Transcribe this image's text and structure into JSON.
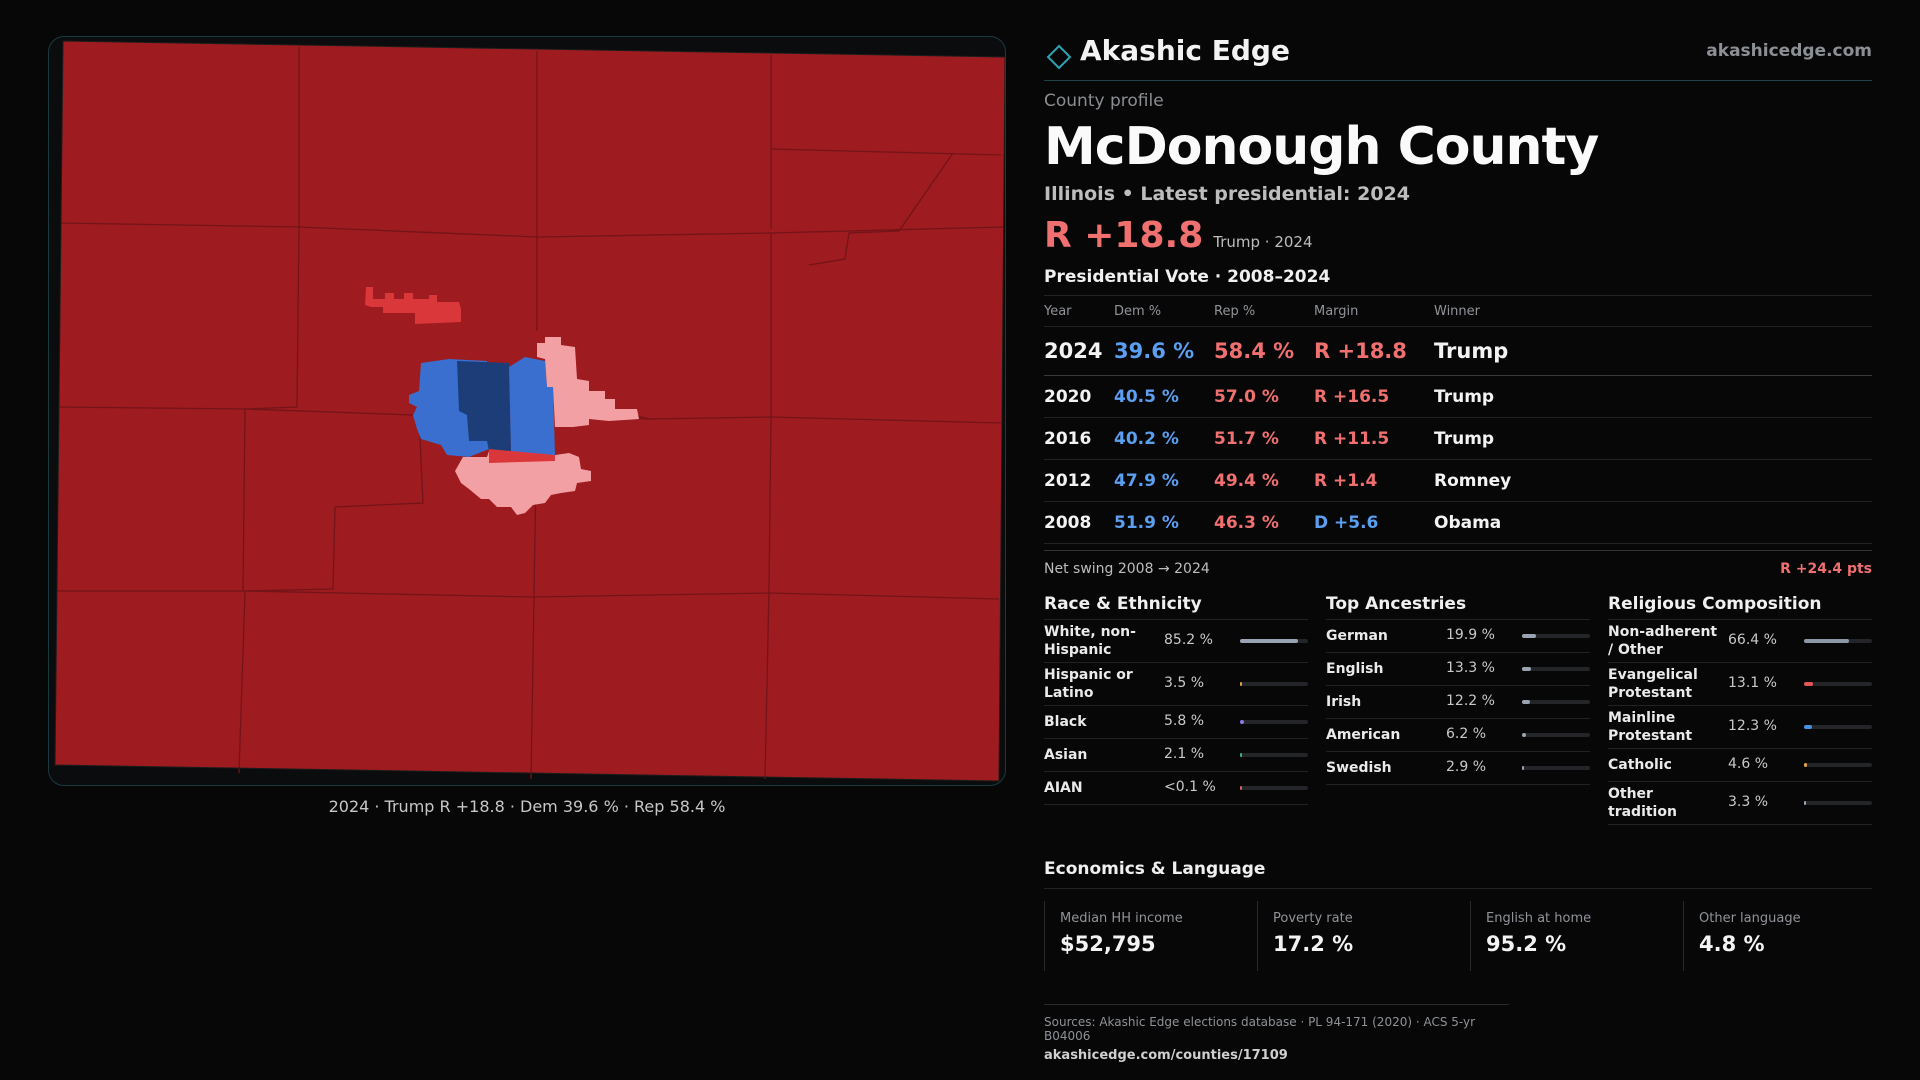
{
  "brand": {
    "name": "Akashic Edge",
    "url": "akashicedge.com",
    "accent_color": "#2aa3b3",
    "logo_icon": "diamond-outline-icon"
  },
  "profile": {
    "label": "County profile",
    "county": "McDonough County",
    "subtitle": "Illinois • Latest presidential: 2024",
    "headline_margin": "R +18.8",
    "headline_winner": "Trump · 2024"
  },
  "map": {
    "caption": "2024 · Trump R +18.8 · Dem 39.6 % · Rep 58.4 %",
    "colors": {
      "strong_rep": "#9e1b1f",
      "mid_rep": "#d9373a",
      "light_rep": "#f3a0a4",
      "dem": "#3a6fcf",
      "dark_dem": "#1c3d77",
      "border": "#7a1518"
    }
  },
  "vote": {
    "title": "Presidential Vote · 2008–2024",
    "headers": [
      "Year",
      "Dem %",
      "Rep %",
      "Margin",
      "Winner"
    ],
    "rows": [
      {
        "year": "2024",
        "dem": "39.6 %",
        "rep": "58.4 %",
        "margin": "R +18.8",
        "party": "rep",
        "winner": "Trump"
      },
      {
        "year": "2020",
        "dem": "40.5 %",
        "rep": "57.0 %",
        "margin": "R +16.5",
        "party": "rep",
        "winner": "Trump"
      },
      {
        "year": "2016",
        "dem": "40.2 %",
        "rep": "51.7 %",
        "margin": "R +11.5",
        "party": "rep",
        "winner": "Trump"
      },
      {
        "year": "2012",
        "dem": "47.9 %",
        "rep": "49.4 %",
        "margin": "R +1.4",
        "party": "rep",
        "winner": "Romney"
      },
      {
        "year": "2008",
        "dem": "51.9 %",
        "rep": "46.3 %",
        "margin": "D +5.6",
        "party": "dem",
        "winner": "Obama"
      }
    ],
    "swing_label": "Net swing 2008 → 2024",
    "swing_value": "R +24.4 pts"
  },
  "race": {
    "title": "Race & Ethnicity",
    "rows": [
      {
        "label": "White, non-Hispanic",
        "value": "85.2 %",
        "fraction": 0.852,
        "color": "#9aa3b2"
      },
      {
        "label": "Hispanic or Latino",
        "value": "3.5 %",
        "fraction": 0.035,
        "color": "#e0a23a"
      },
      {
        "label": "Black",
        "value": "5.8 %",
        "fraction": 0.058,
        "color": "#8b7be0"
      },
      {
        "label": "Asian",
        "value": "2.1 %",
        "fraction": 0.021,
        "color": "#3ab37e"
      },
      {
        "label": "AIAN",
        "value": "<0.1 %",
        "fraction": 0.001,
        "color": "#c66"
      }
    ]
  },
  "ancestry": {
    "title": "Top Ancestries",
    "rows": [
      {
        "label": "German",
        "value": "19.9 %",
        "fraction": 0.199,
        "color": "#9aa3b2"
      },
      {
        "label": "English",
        "value": "13.3 %",
        "fraction": 0.133,
        "color": "#9aa3b2"
      },
      {
        "label": "Irish",
        "value": "12.2 %",
        "fraction": 0.122,
        "color": "#9aa3b2"
      },
      {
        "label": "American",
        "value": "6.2 %",
        "fraction": 0.062,
        "color": "#9aa3b2"
      },
      {
        "label": "Swedish",
        "value": "2.9 %",
        "fraction": 0.029,
        "color": "#9aa3b2"
      }
    ]
  },
  "religion": {
    "title": "Religious Composition",
    "rows": [
      {
        "label": "Non-adherent / Other",
        "value": "66.4 %",
        "fraction": 0.664,
        "color": "#8e97a6"
      },
      {
        "label": "Evangelical Protestant",
        "value": "13.1 %",
        "fraction": 0.131,
        "color": "#e05555"
      },
      {
        "label": "Mainline Protestant",
        "value": "12.3 %",
        "fraction": 0.123,
        "color": "#4a90e0"
      },
      {
        "label": "Catholic",
        "value": "4.6 %",
        "fraction": 0.046,
        "color": "#e0a23a"
      },
      {
        "label": "Other tradition",
        "value": "3.3 %",
        "fraction": 0.033,
        "color": "#9aa3b2"
      }
    ]
  },
  "econ": {
    "title": "Economics & Language",
    "cells": [
      {
        "label": "Median HH income",
        "value": "$52,795"
      },
      {
        "label": "Poverty rate",
        "value": "17.2 %"
      },
      {
        "label": "English at home",
        "value": "95.2 %"
      },
      {
        "label": "Other language",
        "value": "4.8 %"
      }
    ]
  },
  "sources": {
    "text": "Sources: Akashic Edge elections database · PL 94-171 (2020) · ACS 5-yr B04006",
    "url": "akashicedge.com/counties/17109"
  }
}
